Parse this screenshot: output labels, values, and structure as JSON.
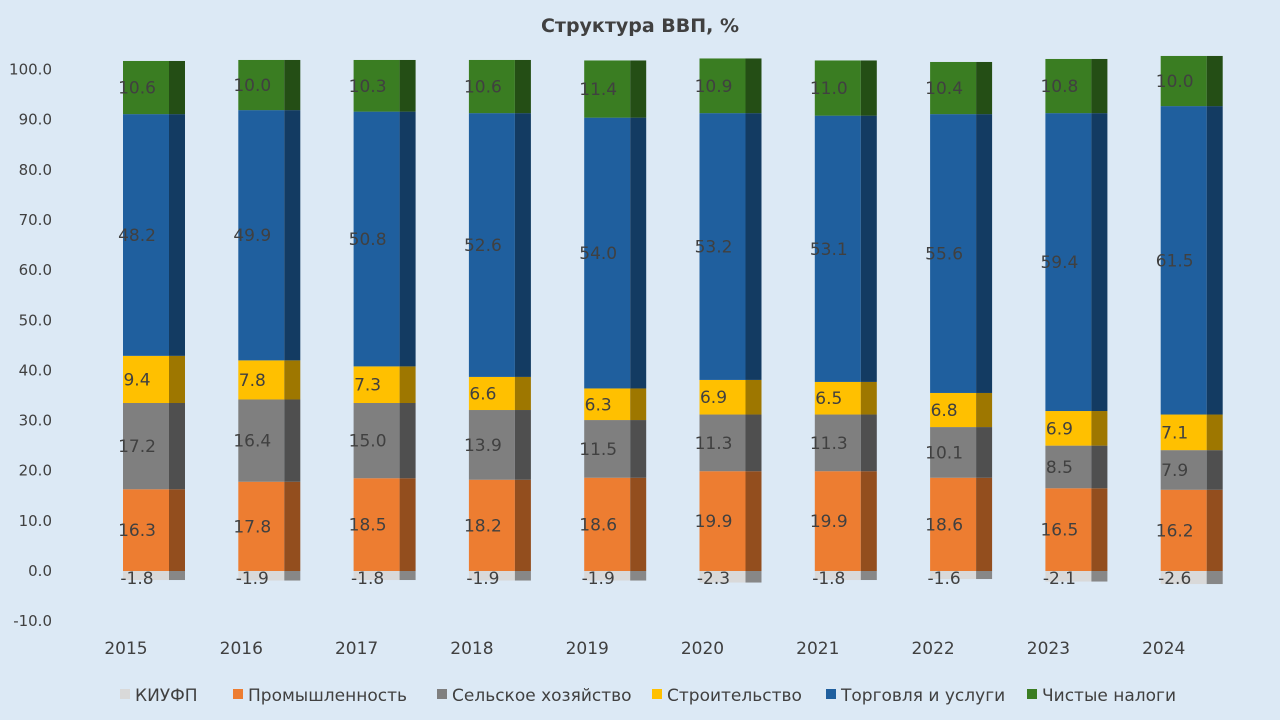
{
  "chart_data": {
    "type": "bar",
    "stacked": true,
    "title": "Структура ВВП, %",
    "xlabel": "",
    "ylabel": "",
    "ylim": [
      -10,
      100
    ],
    "ytick_labels": [
      "-10.0",
      "0.0",
      "10.0",
      "20.0",
      "30.0",
      "40.0",
      "50.0",
      "60.0",
      "70.0",
      "80.0",
      "90.0",
      "100.0"
    ],
    "categories": [
      "2015",
      "2016",
      "2017",
      "2018",
      "2019",
      "2020",
      "2021",
      "2022",
      "2023",
      "2024"
    ],
    "legend_position": "bottom",
    "grid": false,
    "series": [
      {
        "name": "КИУФП",
        "color": "#d9d9d9",
        "values": [
          -1.8,
          -1.9,
          -1.8,
          -1.9,
          -1.9,
          -2.3,
          -1.8,
          -1.6,
          -2.1,
          -2.6
        ]
      },
      {
        "name": "Промышленность",
        "color": "#ed7d31",
        "values": [
          16.3,
          17.8,
          18.5,
          18.2,
          18.6,
          19.9,
          19.9,
          18.6,
          16.5,
          16.2
        ]
      },
      {
        "name": "Сельское хозяйство",
        "color": "#7f7f7f",
        "values": [
          17.2,
          16.4,
          15.0,
          13.9,
          11.5,
          11.3,
          11.3,
          10.1,
          8.5,
          7.9
        ]
      },
      {
        "name": "Строительство",
        "color": "#ffc000",
        "values": [
          9.4,
          7.8,
          7.3,
          6.6,
          6.3,
          6.9,
          6.5,
          6.8,
          6.9,
          7.1
        ]
      },
      {
        "name": "Торговля и услуги",
        "color": "#1f5f9e",
        "values": [
          48.2,
          49.9,
          50.8,
          52.6,
          54.0,
          53.2,
          53.1,
          55.6,
          59.4,
          61.5
        ]
      },
      {
        "name": "Чистые налоги",
        "color": "#3a7d22",
        "values": [
          10.6,
          10.0,
          10.3,
          10.6,
          11.4,
          10.9,
          11.0,
          10.4,
          10.8,
          10.0
        ]
      }
    ]
  }
}
